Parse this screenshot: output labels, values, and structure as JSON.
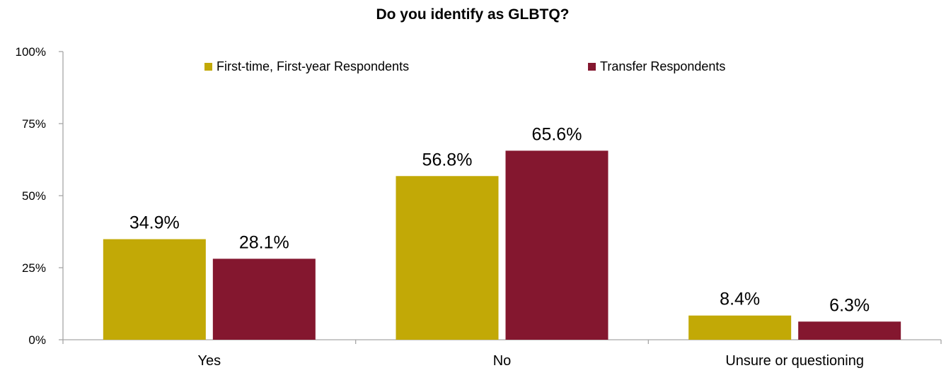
{
  "chart_data": {
    "type": "bar",
    "title": "Do you identify as GLBTQ?",
    "categories": [
      "Yes",
      "No",
      "Unsure or questioning"
    ],
    "series": [
      {
        "name": "First-time, First-year Respondents",
        "color": "#C2A906",
        "values": [
          34.9,
          56.8,
          8.4
        ]
      },
      {
        "name": "Transfer Respondents",
        "color": "#84172F",
        "values": [
          28.1,
          65.6,
          6.3
        ]
      }
    ],
    "value_labels": [
      [
        "34.9%",
        "56.8%",
        "8.4%"
      ],
      [
        "28.1%",
        "65.6%",
        "6.3%"
      ]
    ],
    "yticks": [
      {
        "value": 0,
        "label": "0%"
      },
      {
        "value": 25,
        "label": "25%"
      },
      {
        "value": 50,
        "label": "50%"
      },
      {
        "value": 75,
        "label": "75%"
      },
      {
        "value": 100,
        "label": "100%"
      }
    ],
    "ylim": [
      0,
      100
    ],
    "xlabel": "",
    "ylabel": "",
    "grid": false,
    "legend": "top-center",
    "axis_color": "#A6A6A6"
  }
}
